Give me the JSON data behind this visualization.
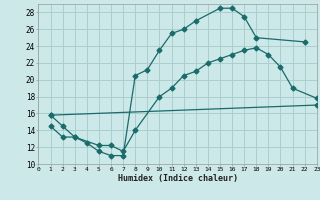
{
  "xlabel": "Humidex (Indice chaleur)",
  "bg_color": "#cce8e8",
  "grid_color": "#aacece",
  "line_color": "#1a6b6b",
  "xlim": [
    0,
    23
  ],
  "ylim": [
    10,
    29
  ],
  "xticks": [
    0,
    1,
    2,
    3,
    4,
    5,
    6,
    7,
    8,
    9,
    10,
    11,
    12,
    13,
    14,
    15,
    16,
    17,
    18,
    19,
    20,
    21,
    22,
    23
  ],
  "yticks": [
    10,
    12,
    14,
    16,
    18,
    20,
    22,
    24,
    26,
    28
  ],
  "line1_x": [
    1,
    2,
    3,
    4,
    5,
    6,
    7,
    8,
    9,
    10,
    11,
    12,
    13,
    15,
    16,
    17,
    18,
    22
  ],
  "line1_y": [
    15.8,
    14.5,
    13.2,
    12.5,
    11.5,
    11.0,
    11.0,
    20.5,
    21.2,
    23.5,
    25.5,
    26.0,
    27.0,
    28.5,
    28.5,
    27.5,
    25.0,
    24.5
  ],
  "line2_x": [
    1,
    23
  ],
  "line2_y": [
    15.8,
    17.0
  ],
  "line3_x": [
    1,
    2,
    3,
    5,
    6,
    7,
    8,
    10,
    11,
    12,
    13,
    14,
    15,
    16,
    17,
    18,
    19,
    20,
    21,
    23
  ],
  "line3_y": [
    14.5,
    13.2,
    13.2,
    12.2,
    12.2,
    11.5,
    14.0,
    18.0,
    19.0,
    20.5,
    21.0,
    22.0,
    22.5,
    23.0,
    23.5,
    23.8,
    23.0,
    21.5,
    19.0,
    17.8
  ]
}
